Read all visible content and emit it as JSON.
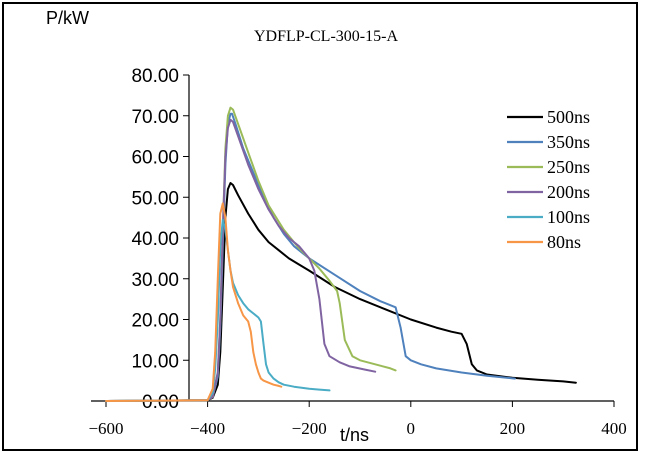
{
  "chart_data": {
    "type": "line",
    "title": "YDFLP-CL-300-15-A",
    "ylabel": "P/kW",
    "xlabel": "t/ns",
    "xlim": [
      -600,
      400
    ],
    "ylim": [
      0,
      80
    ],
    "xticks": [
      -600,
      -400,
      -200,
      0,
      200,
      400
    ],
    "xtick_labels": [
      "−600",
      "−400",
      "−200",
      "0",
      "200",
      "400"
    ],
    "yticks": [
      0,
      10,
      20,
      30,
      40,
      50,
      60,
      70,
      80
    ],
    "ytick_labels": [
      "0.00",
      "10.00",
      "20.00",
      "30.00",
      "40.00",
      "50.00",
      "60.00",
      "70.00",
      "80.00"
    ],
    "grid": false,
    "legend_position": "right",
    "series": [
      {
        "name": "500ns",
        "color": "#000000",
        "x": [
          -600,
          -400,
          -390,
          -380,
          -375,
          -370,
          -365,
          -360,
          -355,
          -350,
          -340,
          -320,
          -300,
          -280,
          -260,
          -240,
          -220,
          -200,
          -150,
          -100,
          -50,
          0,
          50,
          80,
          100,
          110,
          120,
          130,
          150,
          200,
          250,
          300,
          325
        ],
        "y": [
          0,
          0.2,
          0.8,
          4,
          12,
          28,
          45,
          52,
          53.5,
          53,
          50.5,
          46,
          42,
          39,
          37,
          35,
          33.5,
          32,
          28,
          25,
          22.5,
          20,
          18,
          17,
          16.5,
          14,
          9,
          7.5,
          6.5,
          5.7,
          5.2,
          4.8,
          4.5
        ]
      },
      {
        "name": "350ns",
        "color": "#4f81bd",
        "x": [
          -600,
          -400,
          -390,
          -380,
          -375,
          -370,
          -365,
          -360,
          -355,
          -352,
          -345,
          -330,
          -310,
          -290,
          -270,
          -250,
          -230,
          -200,
          -150,
          -100,
          -60,
          -30,
          -20,
          -10,
          0,
          20,
          50,
          100,
          150,
          205
        ],
        "y": [
          0,
          0.2,
          1,
          6,
          18,
          38,
          58,
          68,
          70.5,
          70.5,
          68,
          62,
          56,
          50,
          45,
          41,
          38,
          35,
          31,
          27,
          24.5,
          23,
          18,
          11,
          10,
          9,
          8,
          7,
          6.2,
          5.5
        ]
      },
      {
        "name": "250ns",
        "color": "#9bbb59",
        "x": [
          -600,
          -400,
          -390,
          -380,
          -375,
          -370,
          -365,
          -360,
          -355,
          -350,
          -340,
          -320,
          -300,
          -280,
          -250,
          -220,
          -200,
          -180,
          -160,
          -145,
          -140,
          -130,
          -115,
          -100,
          -70,
          -40,
          -30
        ],
        "y": [
          0,
          0.2,
          1,
          7,
          20,
          42,
          62,
          70,
          72,
          71.5,
          68,
          61,
          54,
          48,
          42,
          37.5,
          35,
          32.5,
          29.5,
          27,
          24,
          15,
          11,
          10,
          9,
          8,
          7.5
        ]
      },
      {
        "name": "200ns",
        "color": "#8064a2",
        "x": [
          -600,
          -400,
          -390,
          -380,
          -375,
          -370,
          -365,
          -360,
          -355,
          -350,
          -340,
          -320,
          -300,
          -280,
          -260,
          -240,
          -220,
          -200,
          -190,
          -180,
          -170,
          -160,
          -140,
          -120,
          -90,
          -70
        ],
        "y": [
          0,
          0.2,
          1,
          7,
          20,
          42,
          60,
          67,
          69,
          68.5,
          65,
          58,
          52,
          47,
          43,
          40,
          38,
          35,
          32,
          25,
          14,
          11,
          9.5,
          8.5,
          7.7,
          7.2
        ]
      },
      {
        "name": "100ns",
        "color": "#4bacc6",
        "x": [
          -600,
          -400,
          -390,
          -385,
          -380,
          -375,
          -370,
          -365,
          -360,
          -355,
          -350,
          -340,
          -330,
          -320,
          -310,
          -300,
          -295,
          -290,
          -285,
          -280,
          -270,
          -260,
          -250,
          -230,
          -200,
          -180,
          -160
        ],
        "y": [
          0,
          0.2,
          2,
          8,
          20,
          38,
          44.5,
          42,
          37,
          32,
          29,
          26,
          24,
          22.5,
          21.5,
          20.5,
          19.5,
          14,
          9,
          7,
          5.5,
          4.6,
          4,
          3.5,
          3,
          2.8,
          2.6
        ]
      },
      {
        "name": "80ns",
        "color": "#f79646",
        "x": [
          -600,
          -400,
          -390,
          -385,
          -380,
          -375,
          -370,
          -365,
          -360,
          -355,
          -350,
          -340,
          -330,
          -320,
          -315,
          -310,
          -305,
          -300,
          -295,
          -290,
          -280,
          -270,
          -260,
          -255
        ],
        "y": [
          0,
          0.2,
          3,
          12,
          30,
          46,
          48.5,
          45,
          37,
          32,
          28,
          24,
          21,
          19.5,
          17,
          12,
          9,
          7,
          5.5,
          5,
          4.5,
          4,
          3.7,
          3.5
        ]
      }
    ]
  }
}
